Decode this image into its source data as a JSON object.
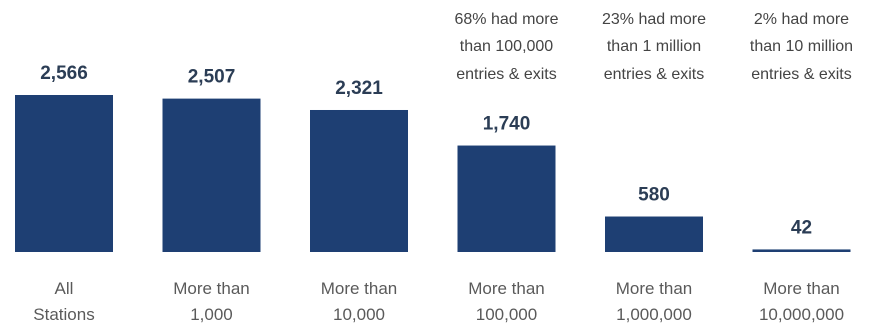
{
  "chart_data": {
    "type": "bar",
    "categories": [
      [
        "All",
        "Stations"
      ],
      [
        "More than",
        "1,000"
      ],
      [
        "More than",
        "10,000"
      ],
      [
        "More than",
        "100,000"
      ],
      [
        "More than",
        "1,000,000"
      ],
      [
        "More than",
        "10,000,000"
      ]
    ],
    "values": [
      2566,
      2507,
      2321,
      1740,
      580,
      42
    ],
    "value_labels": [
      "2,566",
      "2,507",
      "2,321",
      "1,740",
      "580",
      "42"
    ],
    "annotations": [
      {
        "category_index": 3,
        "lines": [
          "68% had more",
          "than 100,000",
          "entries & exits"
        ]
      },
      {
        "category_index": 4,
        "lines": [
          "23% had more",
          "than 1 million",
          "entries & exits"
        ]
      },
      {
        "category_index": 5,
        "lines": [
          "2% had more",
          "than 10 million",
          "entries & exits"
        ]
      }
    ],
    "ylim": [
      0,
      2566
    ],
    "colors": {
      "bar": "#1e3f73"
    },
    "grid": false,
    "legend": "none"
  }
}
